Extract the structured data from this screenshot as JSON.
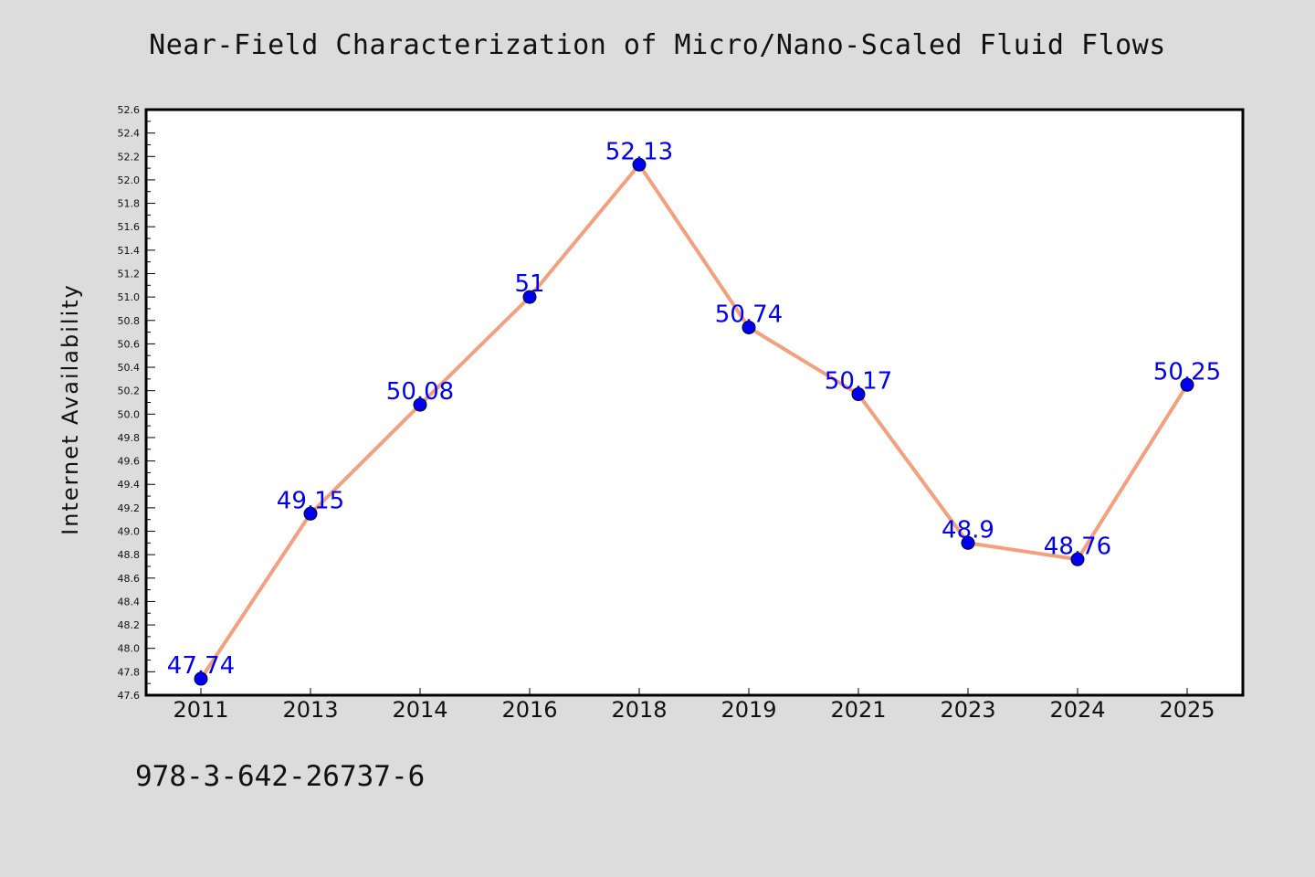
{
  "page": {
    "title": "Near-Field Characterization of Micro/Nano-Scaled Fluid Flows",
    "footer_code": "978-3-642-26737-6",
    "background": "#dcdcdc"
  },
  "chart_data": {
    "type": "line",
    "title": "Near-Field Characterization of Micro/Nano-Scaled Fluid Flows",
    "xlabel": "",
    "ylabel": "Internet Availability",
    "categories": [
      "2011",
      "2013",
      "2014",
      "2016",
      "2018",
      "2019",
      "2021",
      "2023",
      "2024",
      "2025"
    ],
    "series": [
      {
        "values": [
          47.74,
          49.15,
          50.08,
          51,
          52.13,
          50.74,
          50.17,
          48.9,
          48.76,
          50.25
        ],
        "data_labels": [
          "47.74",
          "49.15",
          "50.08",
          "51",
          "52.13",
          "50.74",
          "50.17",
          "48.9",
          "48.76",
          "50.25"
        ],
        "line_color": "#f4a07e",
        "marker_color": "#0000ee",
        "label_color": "#0000ee"
      }
    ],
    "ylim": [
      47.6,
      52.6
    ],
    "y_major_step": 0.2,
    "y_minor_step": 0.1,
    "y_tick_labels": [
      "47.6",
      "47.8",
      "48.0",
      "48.2",
      "48.4",
      "48.6",
      "48.8",
      "49.0",
      "49.2",
      "49.4",
      "49.6",
      "49.8",
      "50.0",
      "50.2",
      "50.4",
      "50.6",
      "50.8",
      "51.0",
      "51.2",
      "51.4",
      "51.6",
      "51.8",
      "52.0",
      "52.2",
      "52.4",
      "52.6"
    ],
    "grid": false,
    "legend": "none"
  }
}
